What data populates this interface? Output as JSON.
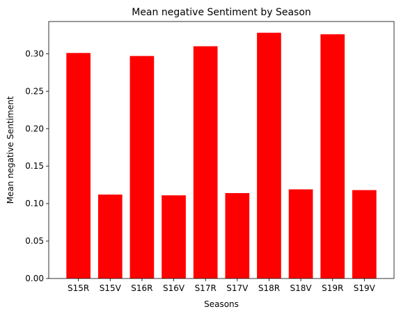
{
  "chart_data": {
    "type": "bar",
    "title": "Mean negative Sentiment by Season",
    "xlabel": "Seasons",
    "ylabel": "Mean negative Sentiment",
    "categories": [
      "S15R",
      "S15V",
      "S16R",
      "S16V",
      "S17R",
      "S17V",
      "S18R",
      "S18V",
      "S19R",
      "S19V"
    ],
    "values": [
      0.301,
      0.112,
      0.297,
      0.111,
      0.31,
      0.114,
      0.328,
      0.119,
      0.326,
      0.118
    ],
    "ylim": [
      0,
      0.343
    ],
    "yticks": [
      0.0,
      0.05,
      0.1,
      0.15,
      0.2,
      0.25,
      0.3
    ],
    "ytick_labels": [
      "0.00",
      "0.05",
      "0.10",
      "0.15",
      "0.20",
      "0.25",
      "0.30"
    ],
    "bar_color": "#ff0000",
    "grid": false
  }
}
